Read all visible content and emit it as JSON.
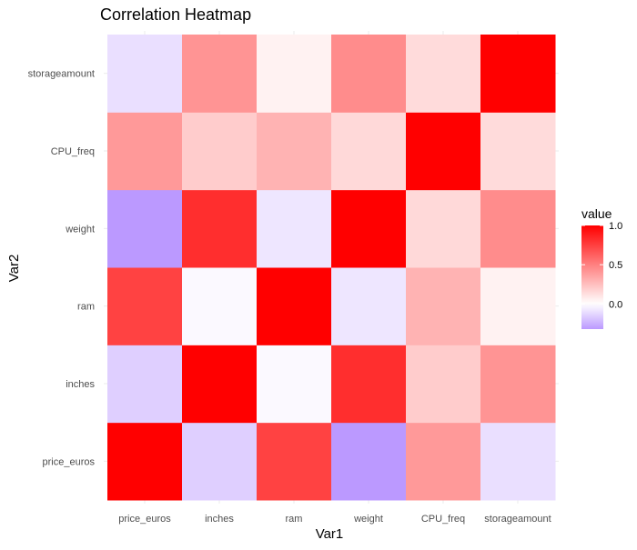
{
  "chart_data": {
    "type": "heatmap",
    "title": "Correlation Heatmap",
    "xlabel": "Var1",
    "ylabel": "Var2",
    "x_categories": [
      "price_euros",
      "inches",
      "ram",
      "weight",
      "CPU_freq",
      "storageamount"
    ],
    "y_categories": [
      "price_euros",
      "inches",
      "ram",
      "weight",
      "CPU_freq",
      "storageamount"
    ],
    "matrix": [
      [
        1.0,
        -0.15,
        0.74,
        -0.32,
        0.4,
        -0.1
      ],
      [
        -0.15,
        1.0,
        -0.02,
        0.82,
        0.2,
        0.42
      ],
      [
        0.74,
        -0.02,
        1.0,
        -0.08,
        0.3,
        0.05
      ],
      [
        -0.32,
        0.82,
        -0.08,
        1.0,
        0.15,
        0.45
      ],
      [
        0.4,
        0.2,
        0.3,
        0.15,
        1.0,
        0.14
      ],
      [
        -0.1,
        0.42,
        0.05,
        0.45,
        0.14,
        1.0
      ]
    ],
    "legend": {
      "title": "value",
      "ticks": [
        1.0,
        0.5,
        0.0
      ],
      "tick_labels": [
        "1.0",
        "0.5",
        "0.0"
      ],
      "range": [
        -0.32,
        1.0
      ],
      "placement": "right"
    },
    "color_scale": {
      "low": "#bb99ff",
      "mid": "#ffffff",
      "high": "#ff0000",
      "low_value": -0.32,
      "mid_value": 0.0,
      "high_value": 1.0
    },
    "grid": true
  }
}
